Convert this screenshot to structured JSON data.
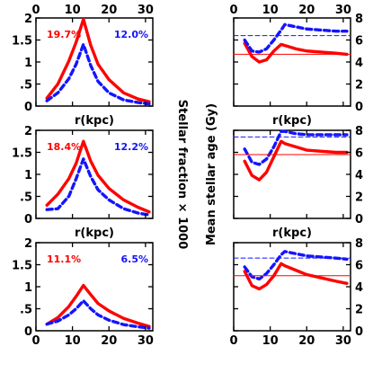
{
  "colors": {
    "red": "#ff0000",
    "blue": "#1414ff",
    "axis": "#000000"
  },
  "labels": {
    "r_label": "r(kpc)",
    "left_ylabel": "Stellar fraction × 1000",
    "right_ylabel": "Mean stellar age (Gy)"
  },
  "chart_data": [
    {
      "type": "line",
      "panel": "left-top",
      "xlim": [
        0,
        32
      ],
      "ylim": [
        0,
        2
      ],
      "xticks": [
        0,
        10,
        20,
        30
      ],
      "yticks": [
        0,
        0.5,
        1,
        1.5,
        2
      ],
      "ytick_labels": [
        "0",
        ".5",
        "1",
        "1.5",
        "2"
      ],
      "xlabel": "r(kpc)",
      "annotations": {
        "red": "19.7%",
        "blue": "12.0%"
      },
      "series": [
        {
          "color": "red",
          "style": "solid",
          "x": [
            3,
            6,
            9,
            11,
            13,
            15,
            17,
            20,
            24,
            28,
            31
          ],
          "y": [
            0.18,
            0.5,
            1.02,
            1.45,
            1.97,
            1.38,
            0.95,
            0.6,
            0.3,
            0.16,
            0.1
          ]
        },
        {
          "color": "blue",
          "style": "dashed",
          "x": [
            3,
            6,
            9,
            11,
            13,
            15,
            17,
            20,
            24,
            28,
            31
          ],
          "y": [
            0.12,
            0.3,
            0.62,
            0.95,
            1.4,
            0.92,
            0.56,
            0.3,
            0.14,
            0.08,
            0.05
          ]
        }
      ]
    },
    {
      "type": "line",
      "panel": "left-middle",
      "xlim": [
        0,
        32
      ],
      "ylim": [
        0,
        2
      ],
      "xticks": [
        0,
        10,
        20,
        30
      ],
      "yticks": [
        0,
        0.5,
        1,
        1.5,
        2
      ],
      "ytick_labels": [
        "0",
        ".5",
        "1",
        "1.5",
        "2"
      ],
      "xlabel": "r(kpc)",
      "annotations": {
        "red": "18.4%",
        "blue": "12.2%"
      },
      "series": [
        {
          "color": "red",
          "style": "solid",
          "x": [
            3,
            6,
            9,
            11,
            13,
            15,
            17,
            20,
            24,
            28,
            31
          ],
          "y": [
            0.3,
            0.55,
            0.9,
            1.25,
            1.75,
            1.3,
            0.98,
            0.68,
            0.42,
            0.25,
            0.15
          ]
        },
        {
          "color": "blue",
          "style": "dashed",
          "x": [
            3,
            6,
            9,
            11,
            13,
            15,
            17,
            20,
            24,
            28,
            31
          ],
          "y": [
            0.2,
            0.22,
            0.5,
            0.9,
            1.35,
            0.95,
            0.65,
            0.42,
            0.22,
            0.12,
            0.08
          ]
        }
      ]
    },
    {
      "type": "line",
      "panel": "left-bottom",
      "xlim": [
        0,
        32
      ],
      "ylim": [
        0,
        2
      ],
      "xticks": [
        0,
        10,
        20,
        30
      ],
      "yticks": [
        0,
        0.5,
        1,
        1.5,
        2
      ],
      "ytick_labels": [
        "0",
        ".5",
        "1",
        "1.5",
        "2"
      ],
      "annotations": {
        "red": "11.1%",
        "blue": "6.5%"
      },
      "series": [
        {
          "color": "red",
          "style": "solid",
          "x": [
            3,
            6,
            9,
            11,
            13,
            15,
            17,
            20,
            24,
            28,
            31
          ],
          "y": [
            0.15,
            0.3,
            0.55,
            0.78,
            1.03,
            0.82,
            0.62,
            0.45,
            0.28,
            0.17,
            0.1
          ]
        },
        {
          "color": "blue",
          "style": "dashed",
          "x": [
            3,
            6,
            9,
            11,
            13,
            15,
            17,
            20,
            24,
            28,
            31
          ],
          "y": [
            0.15,
            0.22,
            0.36,
            0.5,
            0.68,
            0.5,
            0.36,
            0.24,
            0.14,
            0.09,
            0.06
          ]
        }
      ]
    },
    {
      "type": "line",
      "panel": "right-top",
      "xlim": [
        0,
        32
      ],
      "ylim": [
        0,
        8
      ],
      "xticks": [
        0,
        10,
        20,
        30
      ],
      "yticks": [
        0,
        2,
        4,
        6,
        8
      ],
      "ytick_labels": [
        "0",
        "2",
        "4",
        "6",
        "8"
      ],
      "xlabel": "r(kpc)",
      "series": [
        {
          "color": "red",
          "style": "solid",
          "x": [
            3,
            5,
            7,
            9,
            11,
            13,
            14,
            17,
            20,
            24,
            28,
            31
          ],
          "y": [
            5.7,
            4.5,
            4.0,
            4.2,
            5.0,
            5.6,
            5.5,
            5.2,
            5.0,
            4.9,
            4.8,
            4.7
          ]
        },
        {
          "color": "blue",
          "style": "dashed",
          "x": [
            3,
            5,
            7,
            9,
            11,
            13,
            14,
            17,
            20,
            24,
            28,
            31
          ],
          "y": [
            6.0,
            5.0,
            4.9,
            5.2,
            6.0,
            6.9,
            7.4,
            7.2,
            7.0,
            6.9,
            6.8,
            6.8
          ]
        },
        {
          "color": "red",
          "style": "thin",
          "x": [
            0,
            32
          ],
          "y": [
            4.7,
            4.7
          ]
        },
        {
          "color": "blue",
          "style": "thin-dashed",
          "x": [
            0,
            32
          ],
          "y": [
            6.4,
            6.4
          ]
        }
      ]
    },
    {
      "type": "line",
      "panel": "right-middle",
      "xlim": [
        0,
        32
      ],
      "ylim": [
        0,
        8
      ],
      "xticks": [
        0,
        10,
        20,
        30
      ],
      "yticks": [
        0,
        2,
        4,
        6,
        8
      ],
      "ytick_labels": [
        "0",
        "2",
        "4",
        "6",
        "8"
      ],
      "xlabel": "r(kpc)",
      "series": [
        {
          "color": "red",
          "style": "solid",
          "x": [
            3,
            5,
            7,
            9,
            11,
            13,
            14,
            17,
            20,
            24,
            28,
            31
          ],
          "y": [
            5.2,
            3.9,
            3.5,
            4.2,
            5.6,
            7.0,
            6.8,
            6.5,
            6.2,
            6.1,
            6.0,
            6.0
          ]
        },
        {
          "color": "blue",
          "style": "dashed",
          "x": [
            3,
            5,
            7,
            9,
            11,
            13,
            14,
            17,
            20,
            24,
            28,
            31
          ],
          "y": [
            6.3,
            5.1,
            4.9,
            5.4,
            6.5,
            7.9,
            7.9,
            7.7,
            7.6,
            7.6,
            7.6,
            7.6
          ]
        },
        {
          "color": "red",
          "style": "thin",
          "x": [
            0,
            32
          ],
          "y": [
            5.8,
            5.8
          ]
        },
        {
          "color": "blue",
          "style": "thin-dashed",
          "x": [
            0,
            32
          ],
          "y": [
            7.4,
            7.4
          ]
        }
      ]
    },
    {
      "type": "line",
      "panel": "right-bottom",
      "xlim": [
        0,
        32
      ],
      "ylim": [
        0,
        8
      ],
      "xticks": [
        0,
        10,
        20,
        30
      ],
      "yticks": [
        0,
        2,
        4,
        6,
        8
      ],
      "ytick_labels": [
        "0",
        "2",
        "4",
        "6",
        "8"
      ],
      "series": [
        {
          "color": "red",
          "style": "solid",
          "x": [
            3,
            5,
            7,
            9,
            11,
            13,
            14,
            17,
            20,
            24,
            28,
            31
          ],
          "y": [
            5.4,
            4.1,
            3.8,
            4.2,
            5.0,
            6.1,
            5.9,
            5.5,
            5.1,
            4.8,
            4.5,
            4.3
          ]
        },
        {
          "color": "blue",
          "style": "dashed",
          "x": [
            3,
            5,
            7,
            9,
            11,
            13,
            14,
            17,
            20,
            24,
            28,
            31
          ],
          "y": [
            5.8,
            4.9,
            4.7,
            5.2,
            6.0,
            6.9,
            7.2,
            7.0,
            6.8,
            6.7,
            6.6,
            6.5
          ]
        },
        {
          "color": "red",
          "style": "thin",
          "x": [
            0,
            32
          ],
          "y": [
            5.0,
            5.0
          ]
        },
        {
          "color": "blue",
          "style": "thin-dashed",
          "x": [
            0,
            32
          ],
          "y": [
            6.6,
            6.6
          ]
        }
      ]
    }
  ]
}
